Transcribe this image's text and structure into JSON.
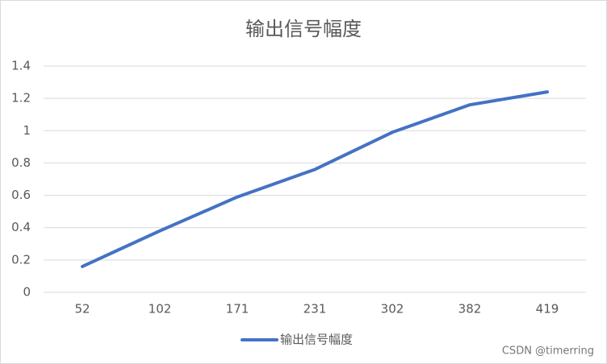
{
  "chart_data": {
    "type": "line",
    "title": "输出信号幅度",
    "categories": [
      "52",
      "102",
      "171",
      "231",
      "302",
      "382",
      "419"
    ],
    "series": [
      {
        "name": "输出信号幅度",
        "color": "#4472c4",
        "values": [
          0.16,
          0.38,
          0.59,
          0.76,
          0.99,
          1.16,
          1.24
        ]
      }
    ],
    "ylim": [
      0,
      1.4
    ],
    "yticks": [
      0,
      0.2,
      0.4,
      0.6,
      0.8,
      1,
      1.2,
      1.4
    ],
    "grid": true,
    "legend": "bottom"
  },
  "watermark": "CSDN @timerring"
}
